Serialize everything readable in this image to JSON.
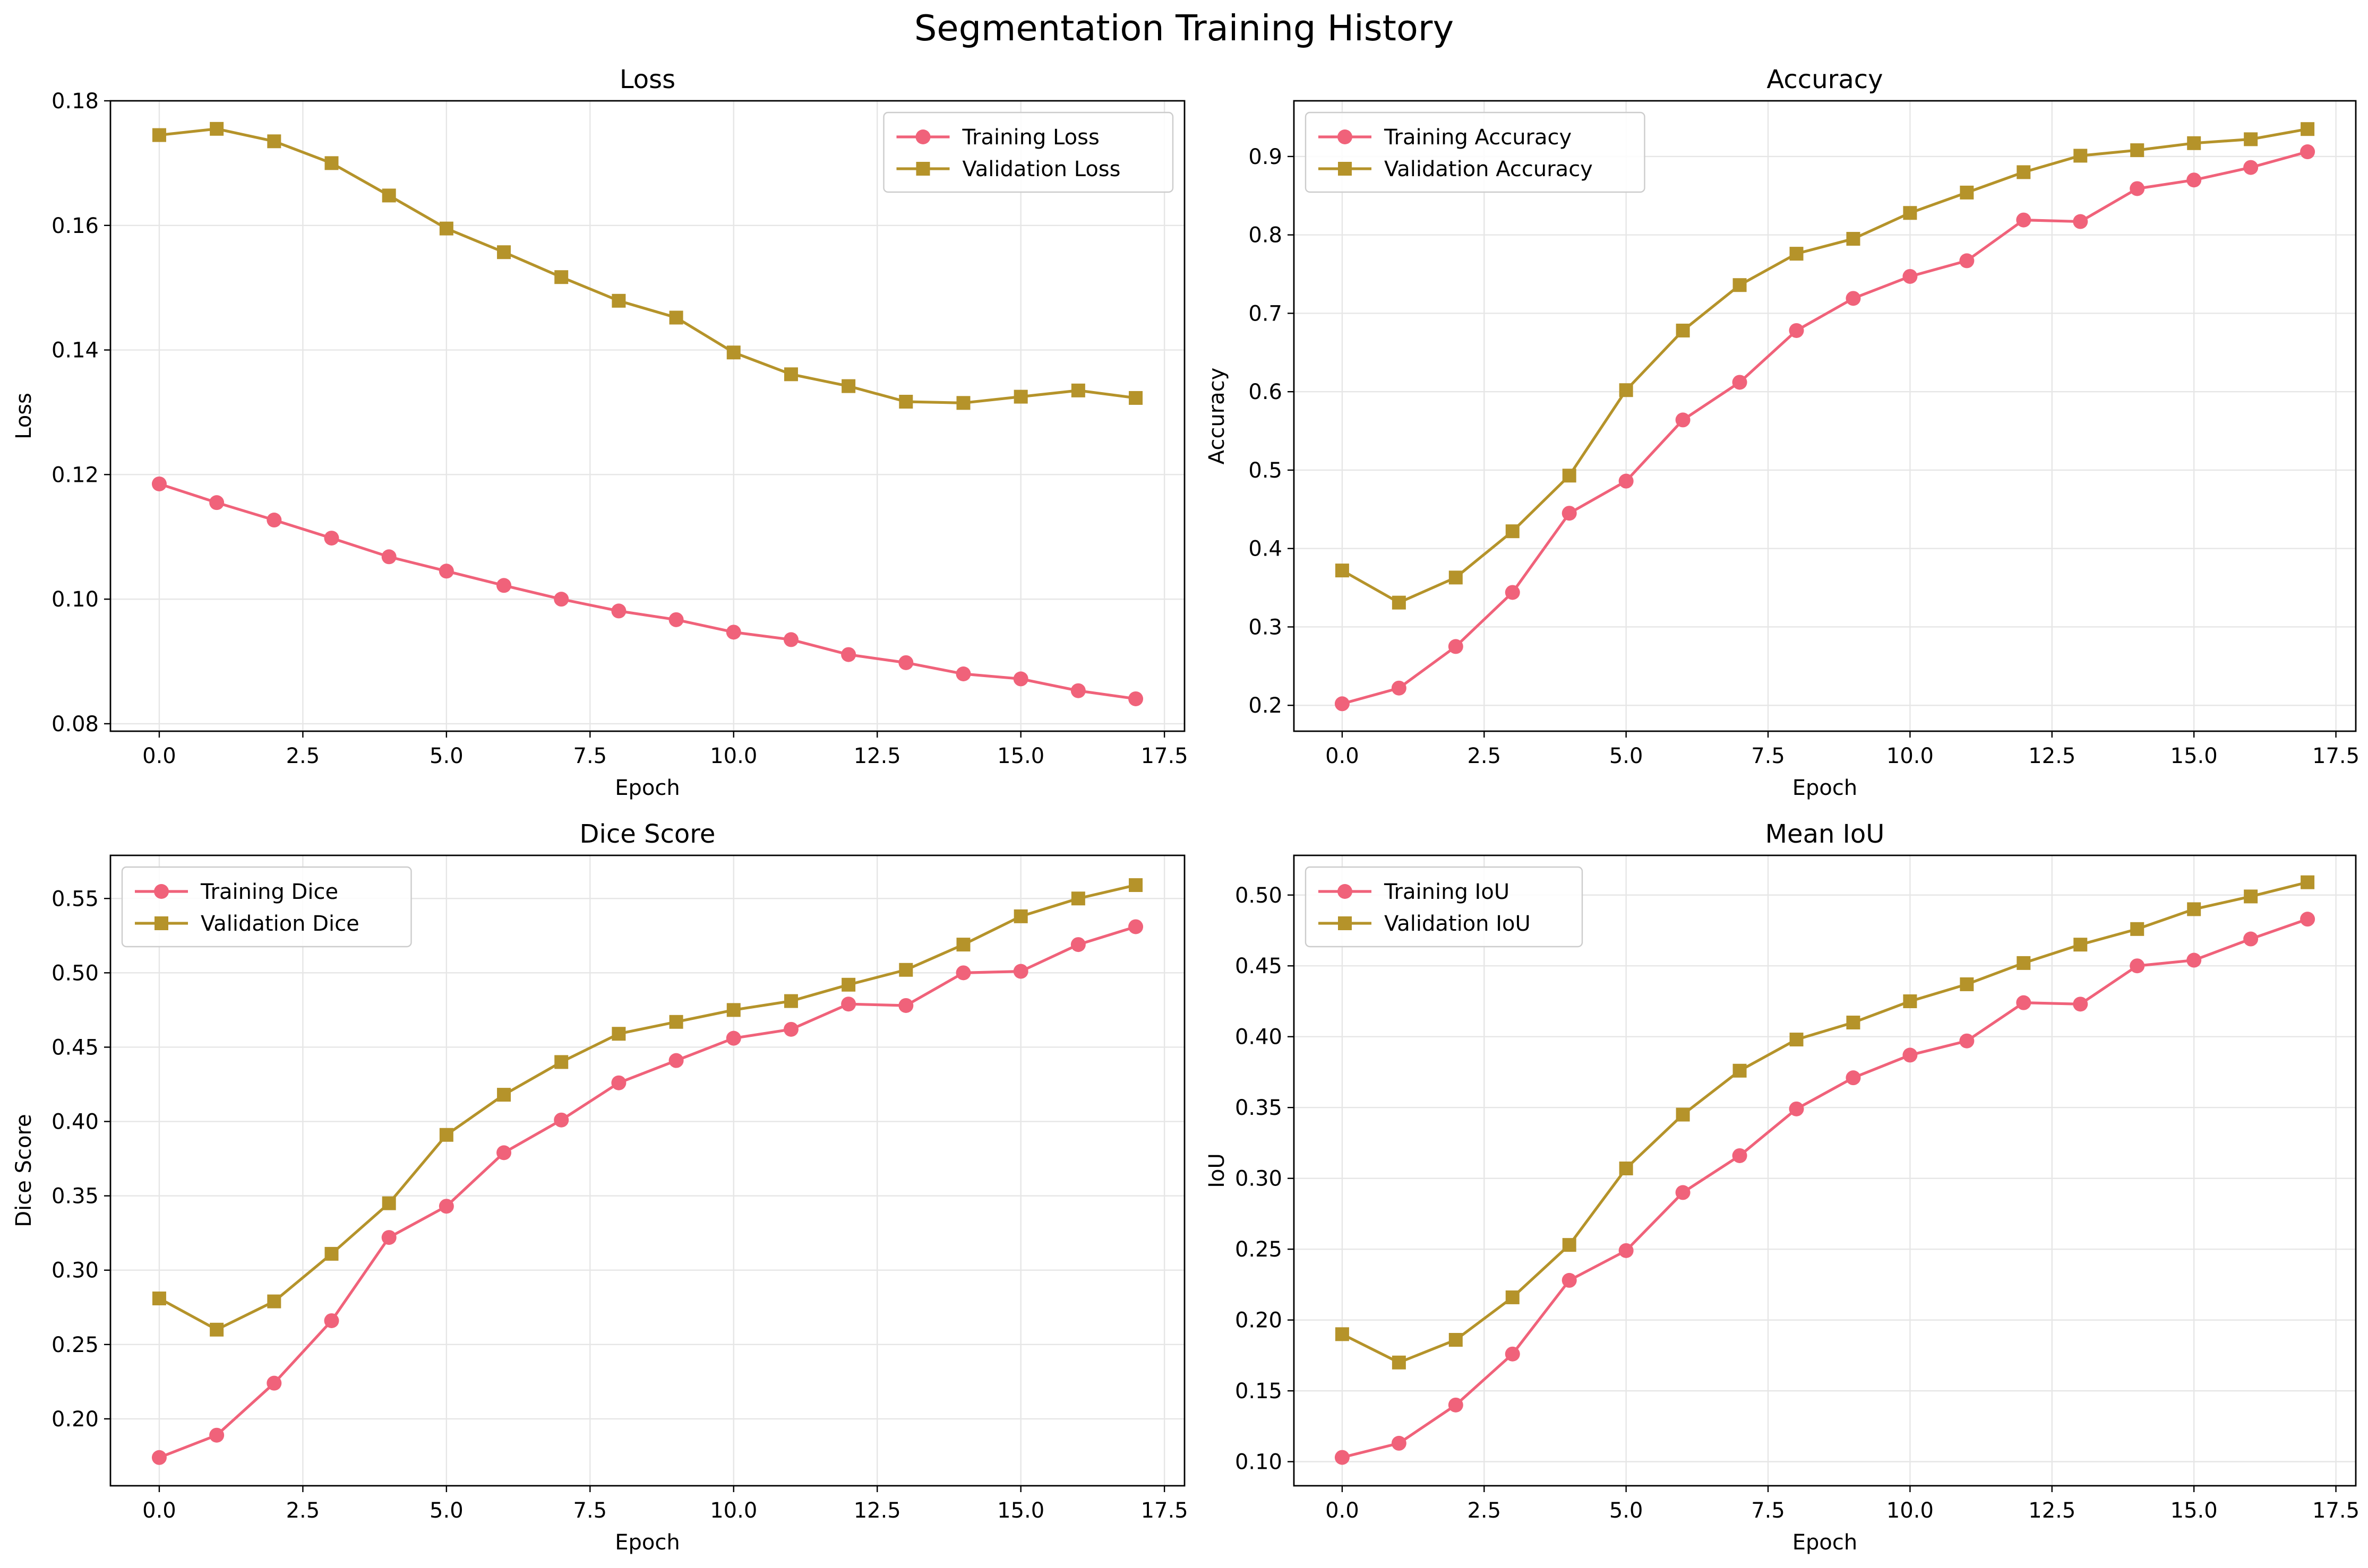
{
  "figure": {
    "title": "Segmentation Training History"
  },
  "colors": {
    "training": "#f0627a",
    "validation": "#b5932a",
    "grid": "#e6e6e6",
    "axis": "#000000"
  },
  "chart_data": [
    {
      "type": "line",
      "title": "Loss",
      "xlabel": "Epoch",
      "ylabel": "Loss",
      "xlim": [
        -0.85,
        17.85
      ],
      "ylim": [
        0.0788,
        0.18
      ],
      "xticks": [
        0.0,
        2.5,
        5.0,
        7.5,
        10.0,
        12.5,
        15.0,
        17.5
      ],
      "xtick_labels": [
        "0.0",
        "2.5",
        "5.0",
        "7.5",
        "10.0",
        "12.5",
        "15.0",
        "17.5"
      ],
      "yticks": [
        0.08,
        0.1,
        0.12,
        0.14,
        0.16,
        0.18
      ],
      "ytick_labels": [
        "0.08",
        "0.10",
        "0.12",
        "0.14",
        "0.16",
        "0.18"
      ],
      "grid": true,
      "legend_position": "upper right",
      "x": [
        0,
        1,
        2,
        3,
        4,
        5,
        6,
        7,
        8,
        9,
        10,
        11,
        12,
        13,
        14,
        15,
        16,
        17
      ],
      "series": [
        {
          "name": "Training Loss",
          "marker": "circle",
          "values": [
            0.1185,
            0.1155,
            0.1127,
            0.1098,
            0.1068,
            0.1045,
            0.1022,
            0.1,
            0.0981,
            0.0967,
            0.0947,
            0.0935,
            0.0911,
            0.0898,
            0.088,
            0.0872,
            0.0853,
            0.084
          ]
        },
        {
          "name": "Validation Loss",
          "marker": "square",
          "values": [
            0.1745,
            0.1755,
            0.1735,
            0.17,
            0.1648,
            0.1595,
            0.1557,
            0.1517,
            0.1479,
            0.1452,
            0.1396,
            0.1361,
            0.1342,
            0.1317,
            0.1315,
            0.1325,
            0.1335,
            0.1323
          ]
        }
      ]
    },
    {
      "type": "line",
      "title": "Accuracy",
      "xlabel": "Epoch",
      "ylabel": "Accuracy",
      "xlim": [
        -0.85,
        17.85
      ],
      "ylim": [
        0.167,
        0.971
      ],
      "xticks": [
        0.0,
        2.5,
        5.0,
        7.5,
        10.0,
        12.5,
        15.0,
        17.5
      ],
      "xtick_labels": [
        "0.0",
        "2.5",
        "5.0",
        "7.5",
        "10.0",
        "12.5",
        "15.0",
        "17.5"
      ],
      "yticks": [
        0.2,
        0.3,
        0.4,
        0.5,
        0.6,
        0.7,
        0.8,
        0.9
      ],
      "ytick_labels": [
        "0.2",
        "0.3",
        "0.4",
        "0.5",
        "0.6",
        "0.7",
        "0.8",
        "0.9"
      ],
      "grid": true,
      "legend_position": "upper left",
      "x": [
        0,
        1,
        2,
        3,
        4,
        5,
        6,
        7,
        8,
        9,
        10,
        11,
        12,
        13,
        14,
        15,
        16,
        17
      ],
      "series": [
        {
          "name": "Training Accuracy",
          "marker": "circle",
          "values": [
            0.202,
            0.222,
            0.275,
            0.344,
            0.445,
            0.486,
            0.564,
            0.612,
            0.678,
            0.719,
            0.747,
            0.767,
            0.819,
            0.817,
            0.859,
            0.87,
            0.886,
            0.906
          ]
        },
        {
          "name": "Validation Accuracy",
          "marker": "square",
          "values": [
            0.372,
            0.331,
            0.363,
            0.422,
            0.493,
            0.602,
            0.678,
            0.736,
            0.776,
            0.795,
            0.828,
            0.854,
            0.88,
            0.901,
            0.908,
            0.917,
            0.922,
            0.935
          ]
        }
      ]
    },
    {
      "type": "line",
      "title": "Dice Score",
      "xlabel": "Epoch",
      "ylabel": "Dice Score",
      "xlim": [
        -0.85,
        17.85
      ],
      "ylim": [
        0.155,
        0.579
      ],
      "xticks": [
        0.0,
        2.5,
        5.0,
        7.5,
        10.0,
        12.5,
        15.0,
        17.5
      ],
      "xtick_labels": [
        "0.0",
        "2.5",
        "5.0",
        "7.5",
        "10.0",
        "12.5",
        "15.0",
        "17.5"
      ],
      "yticks": [
        0.2,
        0.25,
        0.3,
        0.35,
        0.4,
        0.45,
        0.5,
        0.55
      ],
      "ytick_labels": [
        "0.20",
        "0.25",
        "0.30",
        "0.35",
        "0.40",
        "0.45",
        "0.50",
        "0.55"
      ],
      "grid": true,
      "legend_position": "upper left",
      "x": [
        0,
        1,
        2,
        3,
        4,
        5,
        6,
        7,
        8,
        9,
        10,
        11,
        12,
        13,
        14,
        15,
        16,
        17
      ],
      "series": [
        {
          "name": "Training Dice",
          "marker": "circle",
          "values": [
            0.174,
            0.189,
            0.224,
            0.266,
            0.322,
            0.343,
            0.379,
            0.401,
            0.426,
            0.441,
            0.456,
            0.462,
            0.479,
            0.478,
            0.5,
            0.501,
            0.519,
            0.531
          ]
        },
        {
          "name": "Validation Dice",
          "marker": "square",
          "values": [
            0.281,
            0.26,
            0.279,
            0.311,
            0.345,
            0.391,
            0.418,
            0.44,
            0.459,
            0.467,
            0.475,
            0.481,
            0.492,
            0.502,
            0.519,
            0.538,
            0.55,
            0.559
          ]
        }
      ]
    },
    {
      "type": "line",
      "title": "Mean IoU",
      "xlabel": "Epoch",
      "ylabel": "IoU",
      "xlim": [
        -0.85,
        17.85
      ],
      "ylim": [
        0.083,
        0.528
      ],
      "xticks": [
        0.0,
        2.5,
        5.0,
        7.5,
        10.0,
        12.5,
        15.0,
        17.5
      ],
      "xtick_labels": [
        "0.0",
        "2.5",
        "5.0",
        "7.5",
        "10.0",
        "12.5",
        "15.0",
        "17.5"
      ],
      "yticks": [
        0.1,
        0.15,
        0.2,
        0.25,
        0.3,
        0.35,
        0.4,
        0.45,
        0.5
      ],
      "ytick_labels": [
        "0.10",
        "0.15",
        "0.20",
        "0.25",
        "0.30",
        "0.35",
        "0.40",
        "0.45",
        "0.50"
      ],
      "grid": true,
      "legend_position": "upper left",
      "x": [
        0,
        1,
        2,
        3,
        4,
        5,
        6,
        7,
        8,
        9,
        10,
        11,
        12,
        13,
        14,
        15,
        16,
        17
      ],
      "series": [
        {
          "name": "Training IoU",
          "marker": "circle",
          "values": [
            0.103,
            0.113,
            0.14,
            0.176,
            0.228,
            0.249,
            0.29,
            0.316,
            0.349,
            0.371,
            0.387,
            0.397,
            0.424,
            0.423,
            0.45,
            0.454,
            0.469,
            0.483
          ]
        },
        {
          "name": "Validation IoU",
          "marker": "square",
          "values": [
            0.19,
            0.17,
            0.186,
            0.216,
            0.253,
            0.307,
            0.345,
            0.376,
            0.398,
            0.41,
            0.425,
            0.437,
            0.452,
            0.465,
            0.476,
            0.49,
            0.499,
            0.509
          ]
        }
      ]
    }
  ]
}
